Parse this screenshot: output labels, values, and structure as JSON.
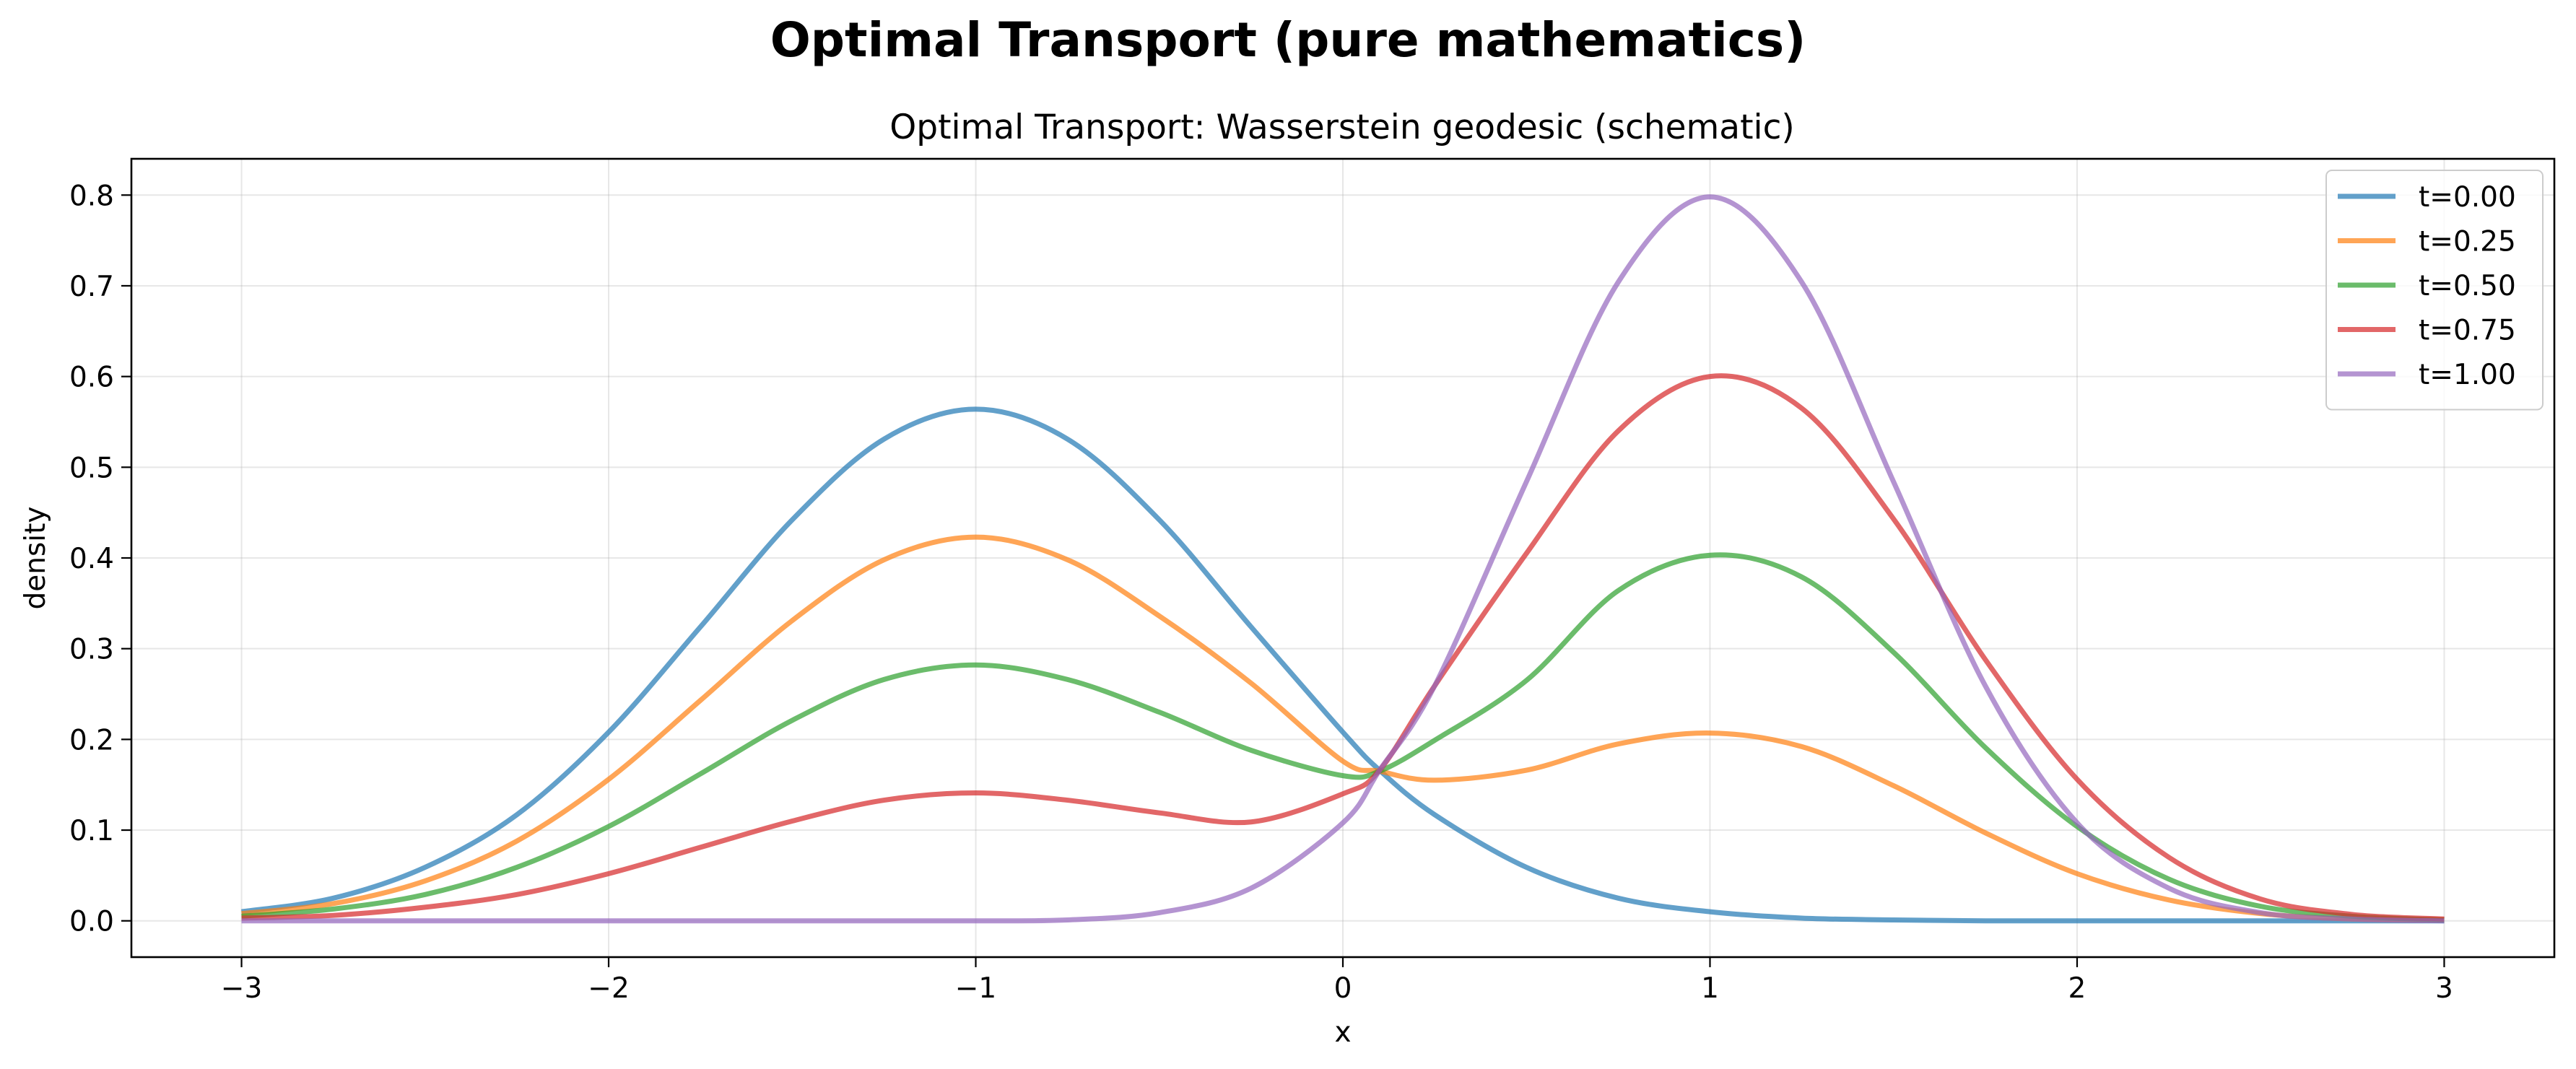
{
  "figure": {
    "suptitle": "Optimal Transport (pure mathematics)"
  },
  "chart_data": {
    "type": "line",
    "title": "Optimal Transport: Wasserstein geodesic (schematic)",
    "xlabel": "x",
    "ylabel": "density",
    "xlim": [
      -3.3,
      3.3
    ],
    "ylim": [
      -0.04,
      0.84
    ],
    "grid": true,
    "legend_position": "top-right",
    "x_ticks": [
      -3,
      -2,
      -1,
      0,
      1,
      2,
      3
    ],
    "x_tick_labels": [
      "−3",
      "−2",
      "−1",
      "0",
      "1",
      "2",
      "3"
    ],
    "y_ticks": [
      0.0,
      0.1,
      0.2,
      0.3,
      0.4,
      0.5,
      0.6,
      0.7,
      0.8
    ],
    "y_tick_labels": [
      "0.0",
      "0.1",
      "0.2",
      "0.3",
      "0.4",
      "0.5",
      "0.6",
      "0.7",
      "0.8"
    ],
    "x": [
      -3.0,
      -2.75,
      -2.5,
      -2.25,
      -2.0,
      -1.75,
      -1.5,
      -1.25,
      -1.0,
      -0.75,
      -0.5,
      -0.25,
      0.0,
      0.1,
      0.25,
      0.5,
      0.75,
      1.0,
      1.25,
      1.5,
      1.75,
      2.0,
      2.25,
      2.5,
      2.75,
      3.0
    ],
    "series": [
      {
        "name": "t=0.00",
        "color": "#1f77b4",
        "values": [
          0.01,
          0.025,
          0.059,
          0.117,
          0.208,
          0.324,
          0.442,
          0.531,
          0.564,
          0.531,
          0.442,
          0.324,
          0.208,
          0.166,
          0.117,
          0.059,
          0.025,
          0.01,
          0.003,
          0.001,
          0.0,
          0.0,
          0.0,
          0.0,
          0.0,
          0.0
        ]
      },
      {
        "name": "t=0.25",
        "color": "#ff7f0e",
        "values": [
          0.008,
          0.019,
          0.044,
          0.088,
          0.156,
          0.243,
          0.331,
          0.398,
          0.423,
          0.398,
          0.336,
          0.262,
          0.176,
          0.165,
          0.155,
          0.166,
          0.195,
          0.207,
          0.192,
          0.149,
          0.097,
          0.052,
          0.023,
          0.008,
          0.002,
          0.001
        ]
      },
      {
        "name": "t=0.50",
        "color": "#2ca02c",
        "values": [
          0.005,
          0.013,
          0.029,
          0.059,
          0.104,
          0.162,
          0.221,
          0.266,
          0.282,
          0.266,
          0.23,
          0.188,
          0.16,
          0.165,
          0.199,
          0.265,
          0.364,
          0.403,
          0.379,
          0.296,
          0.191,
          0.104,
          0.046,
          0.016,
          0.005,
          0.001
        ]
      },
      {
        "name": "t=0.75",
        "color": "#d62728",
        "values": [
          0.003,
          0.006,
          0.015,
          0.029,
          0.052,
          0.081,
          0.11,
          0.133,
          0.141,
          0.133,
          0.119,
          0.109,
          0.14,
          0.166,
          0.259,
          0.405,
          0.54,
          0.6,
          0.565,
          0.443,
          0.288,
          0.156,
          0.07,
          0.024,
          0.007,
          0.002
        ]
      },
      {
        "name": "t=1.00",
        "color": "#9467bd",
        "values": [
          0.0,
          0.0,
          0.0,
          0.0,
          0.0,
          0.0,
          0.0,
          0.0,
          0.0,
          0.001,
          0.009,
          0.036,
          0.108,
          0.166,
          0.259,
          0.484,
          0.704,
          0.798,
          0.704,
          0.484,
          0.259,
          0.108,
          0.036,
          0.009,
          0.002,
          0.0
        ]
      }
    ]
  }
}
